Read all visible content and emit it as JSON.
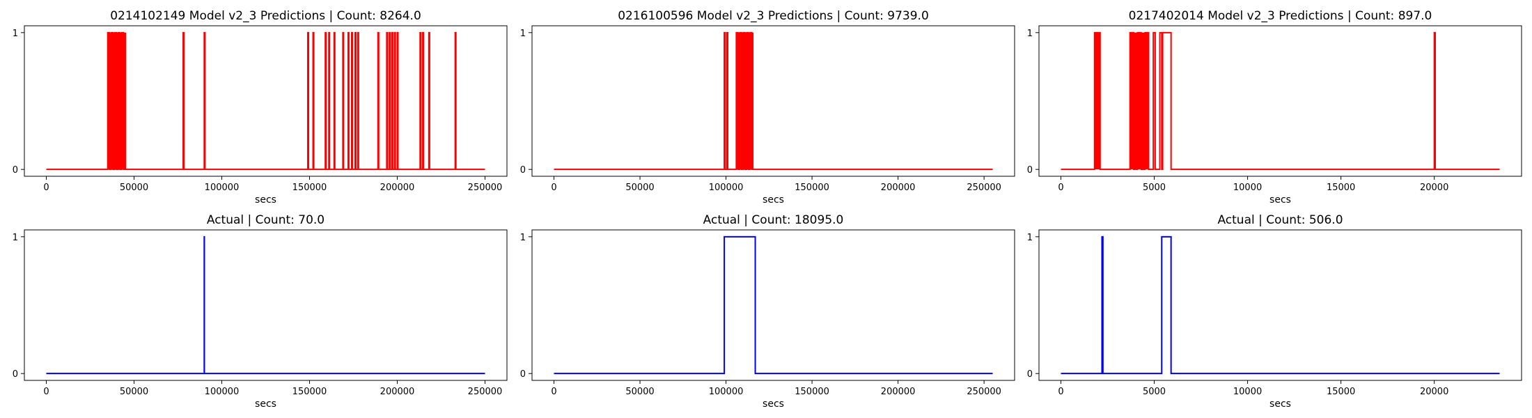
{
  "chart_data": [
    {
      "type": "line",
      "title": "0214102149 Model v2_3 Predictions | Count: 8264.0",
      "xlabel": "secs",
      "ylabel": "",
      "xlim": [
        -12500,
        262500
      ],
      "ylim": [
        -0.05,
        1.05
      ],
      "xticks": [
        0,
        50000,
        100000,
        150000,
        200000,
        250000
      ],
      "yticks": [
        0,
        1
      ],
      "grid": false,
      "series": [
        {
          "color": "#ff0000",
          "x": [
            0,
            35000,
            35000,
            36000,
            36000,
            37000,
            37000,
            38000,
            38000,
            39000,
            39000,
            40000,
            40000,
            41000,
            41000,
            42000,
            42000,
            43000,
            43000,
            44000,
            44000,
            45000,
            45000,
            78000,
            78000,
            78400,
            78400,
            90000,
            90000,
            90400,
            90400,
            149000,
            149000,
            149400,
            149400,
            152000,
            152000,
            152400,
            152400,
            159000,
            159000,
            159400,
            159400,
            161000,
            161000,
            161400,
            161400,
            164000,
            164000,
            164400,
            164400,
            169000,
            169000,
            169400,
            169400,
            172000,
            172000,
            172400,
            172400,
            174000,
            174000,
            174400,
            174400,
            176000,
            176000,
            176400,
            176400,
            177500,
            177500,
            177900,
            177900,
            189000,
            189000,
            189400,
            189400,
            194000,
            194000,
            194400,
            194400,
            195500,
            195500,
            195900,
            195900,
            197000,
            197000,
            197400,
            197400,
            198500,
            198500,
            198900,
            198900,
            200000,
            200000,
            200400,
            200400,
            213000,
            213000,
            213400,
            213400,
            214500,
            214500,
            214900,
            214900,
            218000,
            218000,
            218400,
            218400,
            233000,
            233000,
            233400,
            233400,
            250000
          ],
          "y": [
            0,
            0,
            1,
            1,
            0,
            0,
            1,
            1,
            0,
            0,
            1,
            1,
            0,
            0,
            1,
            1,
            0,
            0,
            1,
            1,
            0,
            0,
            0,
            0,
            1,
            1,
            0,
            0,
            1,
            1,
            0,
            0,
            1,
            1,
            0,
            0,
            1,
            1,
            0,
            0,
            1,
            1,
            0,
            0,
            1,
            1,
            0,
            0,
            1,
            1,
            0,
            0,
            1,
            1,
            0,
            0,
            1,
            1,
            0,
            0,
            1,
            1,
            0,
            0,
            1,
            1,
            0,
            0,
            1,
            1,
            0,
            0,
            1,
            1,
            0,
            0,
            1,
            1,
            0,
            0,
            1,
            1,
            0,
            0,
            1,
            1,
            0,
            0,
            1,
            1,
            0,
            0,
            1,
            1,
            0,
            0,
            1,
            1,
            0,
            0,
            1,
            1,
            0,
            0,
            1,
            1,
            0,
            0,
            1,
            1,
            0,
            0
          ],
          "fill_spans": [
            [
              35000,
              45500
            ]
          ]
        }
      ]
    },
    {
      "type": "line",
      "title": "0216100596 Model v2_3 Predictions | Count: 9739.0",
      "xlabel": "secs",
      "ylabel": "",
      "xlim": [
        -12750,
        267750
      ],
      "ylim": [
        -0.05,
        1.05
      ],
      "xticks": [
        0,
        50000,
        100000,
        150000,
        200000,
        250000
      ],
      "yticks": [
        0,
        1
      ],
      "grid": false,
      "series": [
        {
          "color": "#ff0000",
          "x": [
            0,
            99000,
            99000,
            99500,
            99500,
            100500,
            100500,
            101000,
            101000,
            106000,
            106000,
            107000,
            107000,
            108000,
            108000,
            109000,
            109000,
            110000,
            110000,
            111000,
            111000,
            112000,
            112000,
            113000,
            113000,
            114000,
            114000,
            115000,
            115000,
            116000,
            116000,
            255000
          ],
          "y": [
            0,
            0,
            1,
            1,
            0,
            0,
            1,
            1,
            0,
            0,
            1,
            1,
            0,
            0,
            1,
            1,
            0,
            0,
            1,
            1,
            0,
            0,
            1,
            1,
            0,
            0,
            1,
            1,
            0,
            0,
            0,
            0
          ],
          "fill_spans": [
            [
              106000,
              116000
            ]
          ]
        }
      ]
    },
    {
      "type": "line",
      "title": "0217402014 Model v2_3 Predictions | Count: 897.0",
      "xlabel": "secs",
      "ylabel": "",
      "xlim": [
        -1175,
        24675
      ],
      "ylim": [
        -0.05,
        1.05
      ],
      "xticks": [
        0,
        5000,
        10000,
        15000,
        20000
      ],
      "yticks": [
        0,
        1
      ],
      "grid": false,
      "series": [
        {
          "color": "#ff0000",
          "x": [
            0,
            1800,
            1800,
            2100,
            2100,
            3700,
            3700,
            3900,
            3900,
            4100,
            4100,
            4300,
            4300,
            4500,
            4500,
            4700,
            4700,
            4950,
            4950,
            5050,
            5050,
            5300,
            5300,
            5400,
            5400,
            5450,
            5450,
            5900,
            5900,
            20000,
            20000,
            20050,
            20050,
            23500
          ],
          "y": [
            0,
            0,
            1,
            1,
            0,
            0,
            1,
            1,
            0,
            0,
            1,
            1,
            0,
            0,
            1,
            1,
            0,
            0,
            1,
            1,
            0,
            0,
            1,
            1,
            0,
            0,
            1,
            1,
            0,
            0,
            1,
            1,
            0,
            0
          ],
          "fill_spans": [
            [
              1800,
              2100
            ],
            [
              3700,
              4700
            ]
          ]
        }
      ]
    },
    {
      "type": "line",
      "title": "Actual | Count: 70.0",
      "xlabel": "secs",
      "ylabel": "",
      "xlim": [
        -12500,
        262500
      ],
      "ylim": [
        -0.05,
        1.05
      ],
      "xticks": [
        0,
        50000,
        100000,
        150000,
        200000,
        250000
      ],
      "yticks": [
        0,
        1
      ],
      "grid": false,
      "series": [
        {
          "color": "#0000ff",
          "x": [
            0,
            90000,
            90000,
            90070,
            90070,
            250000
          ],
          "y": [
            0,
            0,
            1,
            1,
            0,
            0
          ],
          "fill_spans": []
        }
      ]
    },
    {
      "type": "line",
      "title": "Actual | Count: 18095.0",
      "xlabel": "secs",
      "ylabel": "",
      "xlim": [
        -12750,
        267750
      ],
      "ylim": [
        -0.05,
        1.05
      ],
      "xticks": [
        0,
        50000,
        100000,
        150000,
        200000,
        250000
      ],
      "yticks": [
        0,
        1
      ],
      "grid": false,
      "series": [
        {
          "color": "#0000ff",
          "x": [
            0,
            99000,
            99000,
            117000,
            117000,
            255000
          ],
          "y": [
            0,
            0,
            1,
            1,
            0,
            0
          ],
          "fill_spans": []
        }
      ]
    },
    {
      "type": "line",
      "title": "Actual | Count: 506.0",
      "xlabel": "secs",
      "ylabel": "",
      "xlim": [
        -1175,
        24675
      ],
      "ylim": [
        -0.05,
        1.05
      ],
      "xticks": [
        0,
        5000,
        10000,
        15000,
        20000
      ],
      "yticks": [
        0,
        1
      ],
      "grid": false,
      "series": [
        {
          "color": "#0000ff",
          "x": [
            0,
            2200,
            2200,
            2250,
            2250,
            5400,
            5400,
            5900,
            5900,
            23500
          ],
          "y": [
            0,
            0,
            1,
            1,
            0,
            0,
            1,
            1,
            0,
            0
          ],
          "fill_spans": []
        }
      ]
    }
  ]
}
